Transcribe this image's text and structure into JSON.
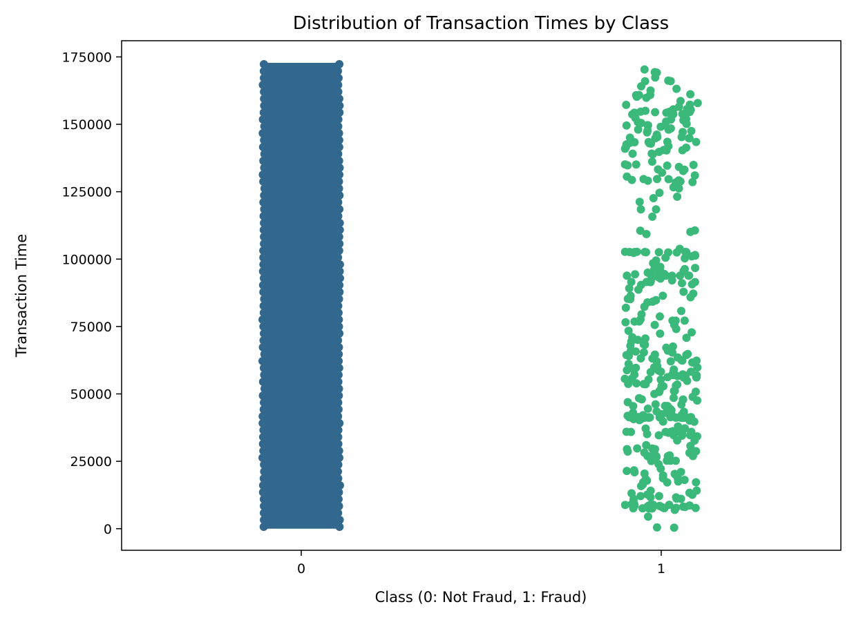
{
  "chart_data": {
    "type": "strip",
    "title": "Distribution of Transaction Times by Class",
    "xlabel": "Class (0: Not Fraud, 1: Fraud)",
    "ylabel": "Transaction Time",
    "categories": [
      "0",
      "1"
    ],
    "ylim": [
      -8000,
      181000
    ],
    "yticks": [
      0,
      25000,
      50000,
      75000,
      100000,
      125000,
      150000,
      175000
    ],
    "ytick_labels": [
      "0",
      "25000",
      "50000",
      "75000",
      "100000",
      "125000",
      "150000",
      "175000"
    ],
    "grid": false,
    "legend": "none",
    "series": [
      {
        "category": "0",
        "color": "#32688e",
        "y_min": 0,
        "y_max": 172792,
        "density": "dense"
      },
      {
        "category": "1",
        "color": "#3bb97a",
        "y_values": [
          406,
          472,
          4462,
          6986,
          7519,
          7526,
          7535,
          7543,
          7551,
          7610,
          7672,
          7740,
          7891,
          8090,
          8169,
          8408,
          8415,
          8451,
          8528,
          8614,
          8757,
          8808,
          8878,
          8886,
          9064,
          9179,
          10630,
          11080,
          11092,
          11131,
          11629,
          11635,
          12093,
          12095,
          12597,
          12687,
          13126,
          13323,
          14073,
          14152,
          15817,
          16415,
          17187,
          17220,
          17230,
          17520,
          17838,
          18088,
          18399,
          18675,
          18690,
          19762,
          20011,
          20332,
          20451,
          20931,
          21046,
          21419,
          21662,
          22252,
          23934,
          25095,
          25198,
          25231,
          25254,
          26523,
          26585,
          26833,
          26899,
          26931,
          26961,
          27163,
          27187,
          27219,
          28143,
          28242,
          28625,
          28658,
          28692,
          28726,
          28755,
          29526,
          29531,
          29753,
          29785,
          30707,
          31002,
          32686,
          32745,
          34256,
          34521,
          34634,
          34684,
          34687,
          35093,
          35484,
          35585,
          35866,
          35899,
          35906,
          35926,
          35942,
          35953,
          36170,
          37167,
          37235,
          37947,
          39713,
          39729,
          40086,
          40276,
          40662,
          40742,
          40918,
          41141,
          41147,
          41164,
          41170,
          41181,
          41191,
          41194,
          41203,
          41204,
          41227,
          41233,
          41237,
          41243,
          41261,
          41273,
          41285,
          41305,
          41313,
          41353,
          41363,
          41369,
          41397,
          41413,
          41851,
          42090,
          42247,
          42474,
          42856,
          42988,
          43028,
          43369,
          43494,
          43930,
          44393,
          44532,
          45463,
          45501,
          45541,
          46057,
          46149,
          46925,
          47545,
          47826,
          47923,
          47982,
          48380,
          48533,
          48884,
          49985,
          50706,
          50808,
          51112,
          51135,
          51155,
          52814,
          52934,
          53076,
          53451,
          53591,
          53658,
          53727,
          53937,
          54846,
          55279,
          55311,
          55614,
          55760,
          56098,
          56103,
          56228,
          56311,
          56624,
          56650,
          56806,
          56887,
          57007,
          57027,
          57163,
          57235,
          58067,
          58199,
          58217,
          58222,
          58642,
          58822,
          59011,
          59385,
          59669,
          59777,
          59840,
          60353,
          61108,
          61646,
          62059,
          62080,
          62330,
          62341,
          62467,
          63140,
          63206,
          63530,
          64093,
          64412,
          64443,
          64585,
          64785,
          65358,
          65385,
          65728,
          65936,
          66037,
          67150,
          67571,
          67857,
          68207,
          68357,
          69394,
          70071,
          70270,
          70536,
          70828,
          71033,
          72327,
          72824,
          73408,
          74081,
          75556,
          75581,
          76575,
          76826,
          76867,
          77171,
          77182,
          77182,
          77627,
          78725,
          79540,
          80760,
          81974,
          82289,
          83934,
          84204,
          84694,
          84789,
          85181,
          85285,
          85867,
          86376,
          86385,
          87202,
          87883,
          88672,
          89170,
          90434,
          90676,
          91075,
          91470,
          91502,
          91524,
          91554,
          92092,
          92140,
          92771,
          93424,
          93824,
          93834,
          93853,
          93860,
          93860,
          93879,
          93888,
          93904,
          93965,
          94362,
          94364,
          94465,
          94966,
          95286,
          95559,
          95628,
          96135,
          96291,
          96717,
          97121,
          98492,
          99506,
          100298,
          100501,
          101051,
          101313,
          101509,
          102318,
          102480,
          102489,
          102542,
          102572,
          102593,
          102622,
          102623,
          102624,
          102625,
          102669,
          102676,
          102700,
          103808,
          109298,
          110087,
          110547,
          110617,
          115725,
          118441,
          118455,
          121238,
          122608,
          123141,
          124611,
          126219,
          126623,
          128411,
          128539,
          128808,
          129095,
          129186,
          129371,
          129641,
          129668,
          129741,
          130598,
          131024,
          132086,
          132688,
          133184,
          133254,
          134210,
          134665,
          134769,
          134928,
          135095,
          135138,
          136148,
          138894,
          139107,
          139117,
          139767,
          140308,
          140375,
          140481,
          140941,
          141320,
          141565,
          141925,
          142557,
          142840,
          142961,
          143085,
          143354,
          143434,
          143456,
          143509,
          144804,
          144808,
          144839,
          145037,
          145274,
          145283,
          146179,
          146998,
          147140,
          147501,
          147673,
          148053,
          148074,
          148476,
          149096,
          149582,
          149587,
          149640,
          149676,
          150139,
          150494,
          150827,
          151029,
          151462,
          151519,
          151807,
          152036,
          152307,
          152802,
          153653,
          153761,
          153823,
          154278,
          154309,
          154493,
          154599,
          154657,
          154668,
          154684,
          155013,
          155359,
          155554,
          155662,
          156499,
          157207,
          157284,
          157868,
          158638,
          159844,
          160243,
          160791,
          160870,
          160895,
          161154,
          162525,
          163181,
          164097,
          165981,
          166028,
          166198,
          167338,
          169142,
          169347,
          170348
        ]
      }
    ]
  }
}
